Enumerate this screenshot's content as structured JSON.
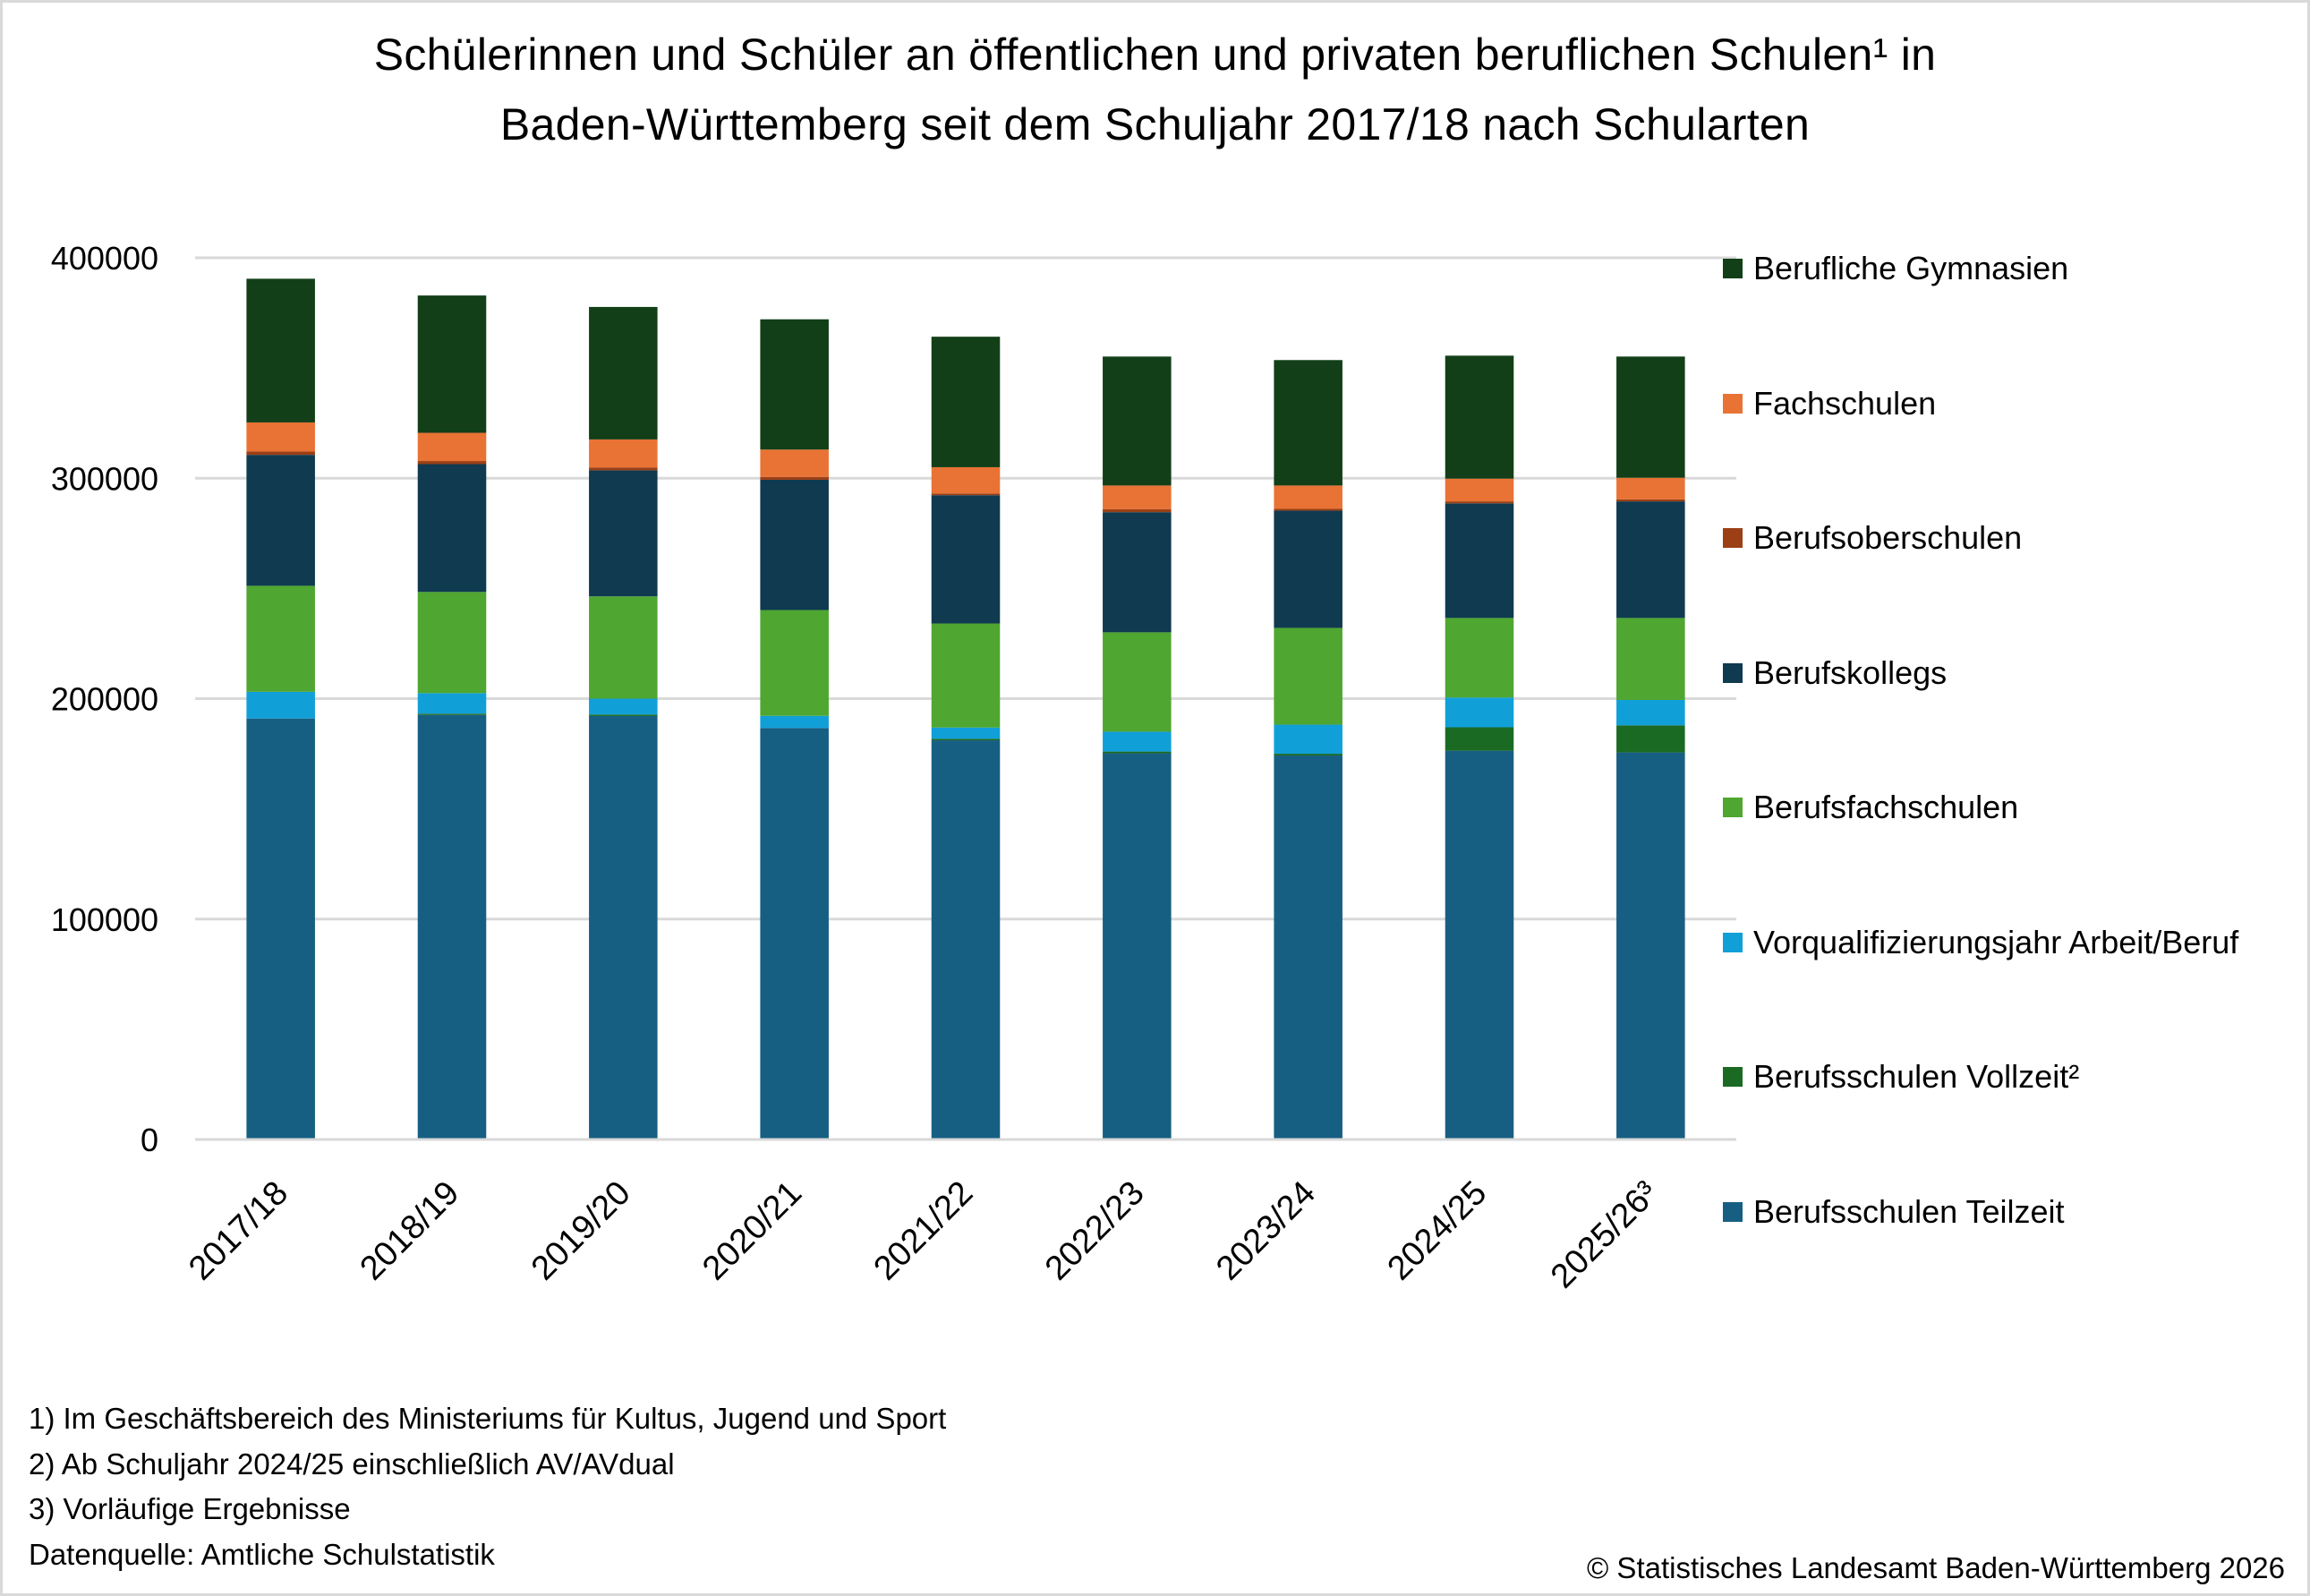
{
  "title_lines": [
    "Schülerinnen und Schüler an öffentlichen und privaten beruflichen Schulen¹ in",
    "Baden-Württemberg seit dem Schuljahr 2017/18 nach Schularten"
  ],
  "footnotes": [
    "1) Im Geschäftsbereich des Ministeriums für Kultus, Jugend und Sport",
    "2) Ab Schuljahr 2024/25 einschließlich AV/AVdual",
    "3) Vorläufige Ergebnisse",
    "Datenquelle: Amtliche Schulstatistik"
  ],
  "copyright": "© Statistisches Landesamt Baden-Württemberg 2026",
  "chart_data": {
    "type": "bar",
    "stacked": true,
    "title": "Schülerinnen und Schüler an öffentlichen und privaten beruflichen Schulen¹ in Baden-Württemberg seit dem Schuljahr 2017/18 nach Schularten",
    "xlabel": "",
    "ylabel": "",
    "ylim": [
      0,
      400000
    ],
    "yticks": [
      0,
      100000,
      200000,
      300000,
      400000
    ],
    "ytick_labels": [
      "0",
      "100000",
      "200000",
      "300000",
      "400000"
    ],
    "grid": true,
    "legend_position": "right",
    "categories": [
      "2017/18",
      "2018/19",
      "2019/20",
      "2020/21",
      "2021/22",
      "2022/23",
      "2023/24",
      "2024/25",
      "2025/26³"
    ],
    "series": [
      {
        "name": "Berufsschulen Teilzeit",
        "color": "#175f82",
        "values": [
          191000,
          192600,
          192100,
          186700,
          181100,
          175200,
          174200,
          176400,
          175600
        ]
      },
      {
        "name": "Berufsschulen Vollzeit²",
        "color": "#1b6a24",
        "values": [
          0,
          600,
          700,
          0,
          700,
          800,
          800,
          10600,
          12300
        ]
      },
      {
        "name": "Vorqualifizierungsjahr Arbeit/Beruf",
        "color": "#119fd8",
        "values": [
          12100,
          9300,
          7200,
          5500,
          5100,
          9000,
          13200,
          13500,
          11500
        ]
      },
      {
        "name": "Berufsfachschulen",
        "color": "#4fa630",
        "values": [
          48100,
          45900,
          46400,
          48000,
          47200,
          45100,
          43900,
          36100,
          37200
        ]
      },
      {
        "name": "Berufskollegs",
        "color": "#0f3a50",
        "values": [
          59400,
          58000,
          57200,
          59100,
          58200,
          54500,
          53200,
          52000,
          52900
        ]
      },
      {
        "name": "Berufsoberschulen",
        "color": "#9c3f15",
        "values": [
          1500,
          1400,
          1300,
          1300,
          800,
          1400,
          800,
          900,
          900
        ]
      },
      {
        "name": "Fachschulen",
        "color": "#e87335",
        "values": [
          13200,
          12800,
          12700,
          12400,
          11900,
          10700,
          10600,
          10300,
          9800
        ]
      },
      {
        "name": "Berufliche Gymnasien",
        "color": "#123f18",
        "values": [
          65200,
          62300,
          60100,
          59100,
          59200,
          58500,
          56900,
          55800,
          55000
        ]
      }
    ],
    "legend_order": [
      "Berufliche Gymnasien",
      "Fachschulen",
      "Berufsoberschulen",
      "Berufskollegs",
      "Berufsfachschulen",
      "Vorqualifizierungsjahr Arbeit/Beruf",
      "Berufsschulen Vollzeit²",
      "Berufsschulen Teilzeit"
    ]
  }
}
